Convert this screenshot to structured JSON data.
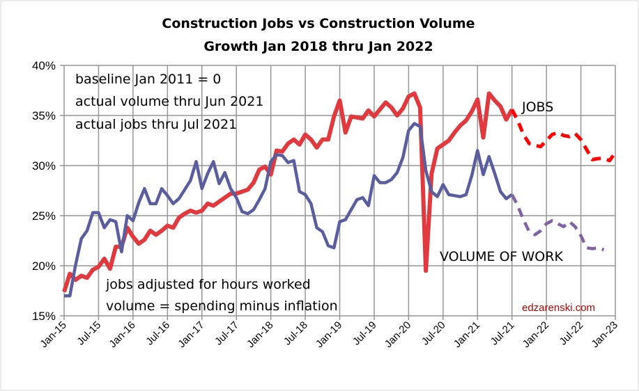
{
  "chart_data": {
    "type": "line",
    "title": [
      "Construction Jobs vs Construction Volume",
      "Growth Jan 2018 thru Jan 2022"
    ],
    "xlabel": "",
    "ylabel": "",
    "ylim": [
      15,
      40
    ],
    "yticks": [
      "15%",
      "20%",
      "25%",
      "30%",
      "35%",
      "40%"
    ],
    "ytick_values": [
      15,
      20,
      25,
      30,
      35,
      40
    ],
    "xticks": [
      "Jan-15",
      "Jul-15",
      "Jan-16",
      "Jul-16",
      "Jan-17",
      "Jul-17",
      "Jan-18",
      "Jul-18",
      "Jan-19",
      "Jul-19",
      "Jan-20",
      "Jul-20",
      "Jan-21",
      "Jul-21",
      "Jan-22",
      "Jul-22",
      "Jan-23"
    ],
    "x_unit": "months since Jan-15",
    "grid": true,
    "forecast_start_month": 78,
    "series": [
      {
        "name": "JOBS",
        "color": "#e0393e",
        "forecast_color": "#ff0000",
        "actual": [
          17.4,
          19.2,
          18.6,
          19.0,
          18.8,
          19.6,
          19.9,
          20.7,
          19.7,
          21.9,
          21.9,
          23.8,
          22.9,
          22.2,
          22.6,
          23.5,
          23.1,
          23.5,
          24.0,
          23.8,
          24.8,
          25.2,
          25.5,
          25.3,
          25.5,
          26.2,
          26.0,
          26.4,
          26.8,
          27.2,
          27.2,
          27.4,
          27.6,
          28.3,
          29.6,
          29.9,
          29.1,
          31.5,
          31.4,
          32.2,
          32.6,
          32.1,
          33.1,
          32.6,
          31.8,
          32.6,
          32.6,
          34.9,
          36.5,
          33.3,
          34.9,
          34.8,
          34.7,
          35.5,
          34.9,
          35.6,
          36.3,
          35.8,
          35.0,
          35.7,
          36.9,
          37.2,
          35.8,
          19.5,
          29.2,
          31.7,
          32.1,
          32.5,
          33.3,
          34.0,
          34.5,
          35.4,
          36.6,
          32.8,
          37.2,
          36.5,
          35.9,
          34.6,
          35.6
        ],
        "forecast": [
          35.6,
          34.5,
          33.1,
          32.2,
          32.0,
          31.9,
          32.5,
          33.1,
          33.3,
          33.0,
          32.9,
          33.2,
          32.6,
          31.6,
          30.6,
          30.7,
          30.7,
          30.5,
          31.3
        ]
      },
      {
        "name": "VOLUME OF WORK",
        "color": "#5b5e9e",
        "forecast_color": "#8064a2",
        "actual": [
          17.0,
          17.0,
          20.1,
          22.7,
          23.5,
          25.3,
          25.3,
          23.8,
          24.6,
          24.4,
          21.4,
          25.0,
          24.5,
          26.3,
          27.7,
          26.2,
          26.2,
          27.7,
          27.0,
          26.2,
          26.7,
          27.6,
          28.5,
          30.4,
          27.7,
          29.2,
          30.4,
          28.2,
          29.3,
          27.7,
          26.8,
          25.4,
          25.2,
          25.6,
          26.6,
          27.7,
          30.4,
          31.1,
          31.0,
          30.3,
          30.5,
          27.4,
          27.1,
          26.2,
          23.8,
          23.4,
          22.0,
          21.8,
          24.4,
          24.6,
          25.6,
          26.6,
          26.8,
          26.0,
          29.0,
          28.3,
          28.3,
          28.6,
          29.3,
          30.8,
          33.5,
          34.2,
          33.9,
          29.5,
          27.4,
          26.9,
          28.1,
          27.1,
          27.0,
          26.9,
          27.1,
          29.0,
          31.5,
          29.1,
          30.9,
          29.2,
          27.4,
          26.7,
          27.1
        ],
        "forecast": [
          27.1,
          26.0,
          24.6,
          23.4,
          23.1,
          23.5,
          24.2,
          24.5,
          24.2,
          23.9,
          24.4,
          23.9,
          23.0,
          21.8,
          21.7,
          21.8,
          21.6
        ]
      }
    ],
    "annotations": {
      "top_notes": [
        "baseline Jan 2011 = 0",
        "actual volume thru Jun 2021",
        "actual jobs thru Jul 2021"
      ],
      "bottom_notes": [
        "jobs adjusted for hours worked",
        "volume = spending minus inflation"
      ],
      "jobs_label": "JOBS",
      "volume_label": "VOLUME OF WORK",
      "credit": "edzarenski.com"
    }
  }
}
